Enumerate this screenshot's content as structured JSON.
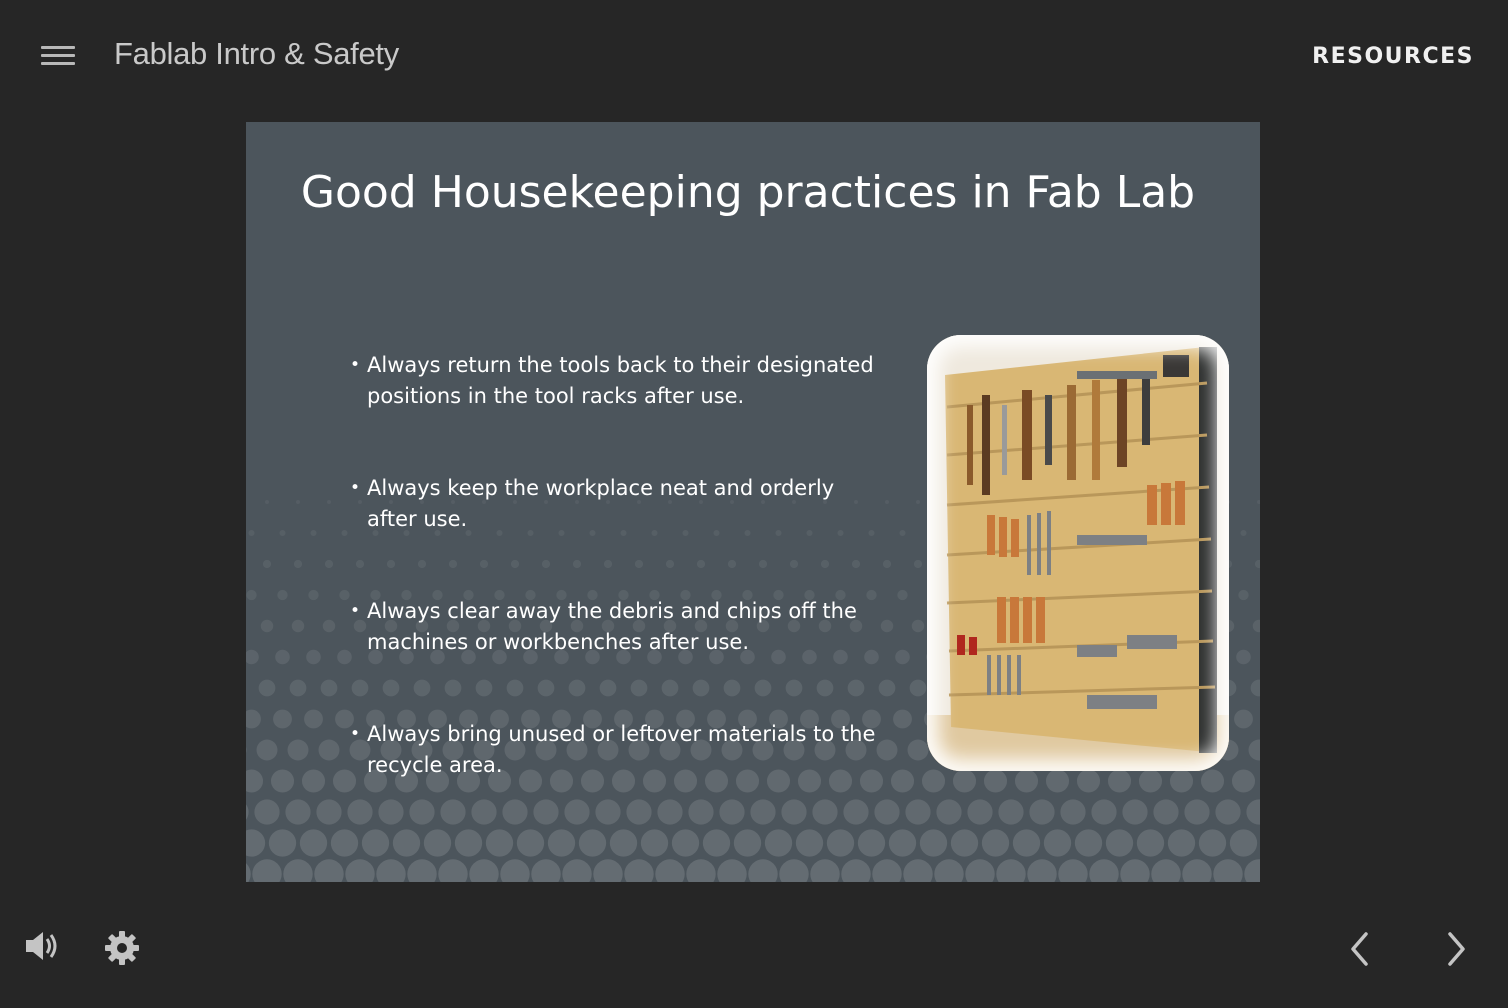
{
  "header": {
    "course_title": "Fablab Intro & Safety",
    "resources_label": "RESOURCES",
    "menu_icon": "hamburger-menu-icon"
  },
  "slide": {
    "title": "Good Housekeeping practices in Fab Lab",
    "bullets": [
      "Always return the tools back to their designated\npositions in the tool racks after use.",
      "Always keep the workplace neat and orderly\nafter use.",
      "Always clear away the debris and chips off the\nmachines or workbenches after use.",
      "Always bring unused or leftover materials to the\nrecycle area."
    ],
    "image": "tool-rack-photo",
    "background_color": "#4c555c"
  },
  "footer": {
    "audio_icon": "speaker-icon",
    "settings_icon": "gear-icon",
    "prev_icon": "chevron-left-icon",
    "next_icon": "chevron-right-icon"
  },
  "colors": {
    "app_background": "#262626",
    "title_text": "#c9c9c9",
    "icon": "#b8b8b8"
  }
}
